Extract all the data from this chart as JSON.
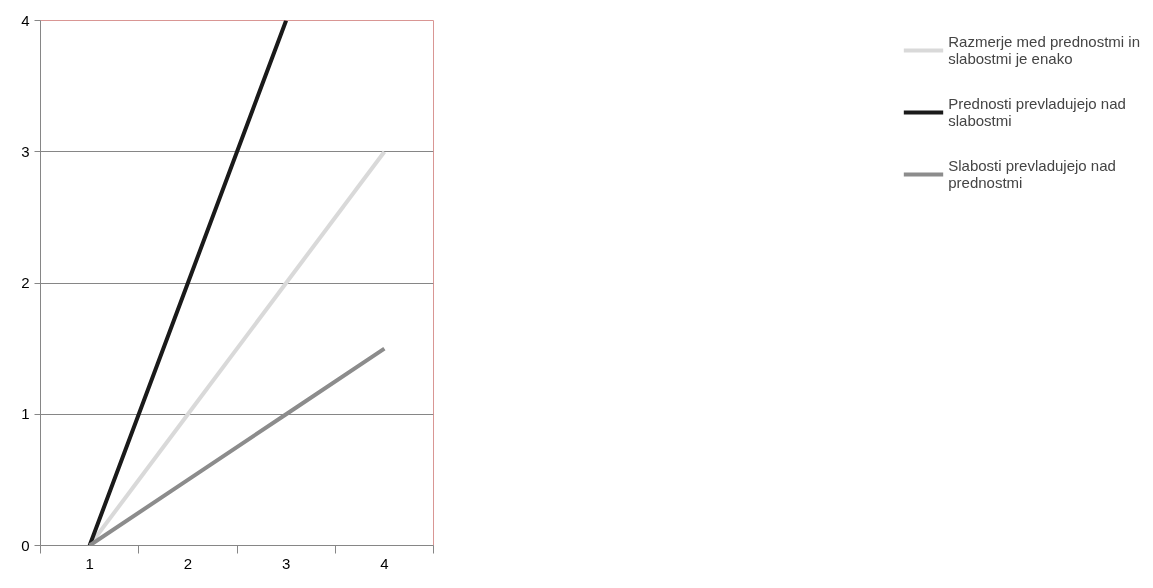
{
  "chart_data": {
    "type": "line",
    "categories": [
      "1",
      "2",
      "3",
      "4"
    ],
    "series": [
      {
        "name": "Razmerje med prednostmi in slabostmi je enako",
        "color": "#d9d9d9",
        "values": [
          0,
          1,
          2,
          3
        ]
      },
      {
        "name": "Prednosti prevladujejo nad slabostmi",
        "color": "#1a1a1a",
        "values": [
          0,
          2,
          4,
          null
        ]
      },
      {
        "name": "Slabosti prevladujejo nad prednostmi",
        "color": "#8c8c8c",
        "values": [
          0,
          0.5,
          1,
          1.5
        ]
      }
    ],
    "ylim": [
      0,
      4
    ],
    "yticks": [
      0,
      1,
      2,
      3,
      4
    ],
    "grid": "y",
    "legend": "right",
    "marker": "none",
    "line_style": "solid"
  }
}
